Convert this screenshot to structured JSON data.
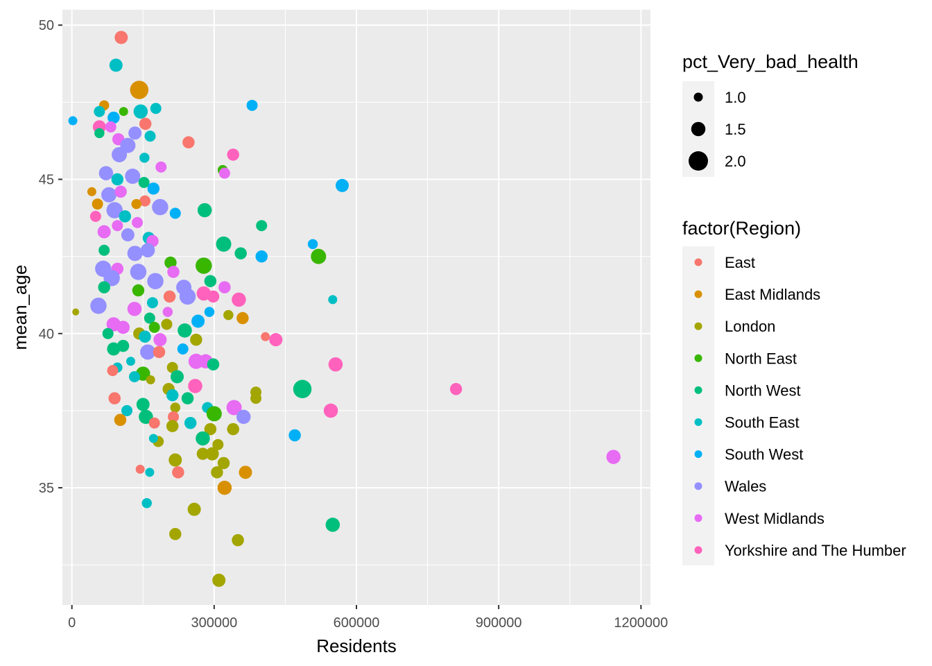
{
  "chart_data": {
    "type": "scatter",
    "xlabel": "Residents",
    "ylabel": "mean_age",
    "xlim": [
      -20000,
      1220000
    ],
    "ylim": [
      31.2,
      50.5
    ],
    "x_ticks": [
      0,
      300000,
      600000,
      900000,
      1200000
    ],
    "x_tick_labels": [
      "0",
      "300000",
      "600000",
      "900000",
      "1200000"
    ],
    "y_ticks": [
      35,
      40,
      45,
      50
    ],
    "y_tick_labels": [
      "35",
      "40",
      "45",
      "50"
    ],
    "grid": true,
    "size_legend": {
      "title": "pct_Very_bad_health",
      "entries": [
        {
          "label": "1.0",
          "value": 1.0
        },
        {
          "label": "1.5",
          "value": 1.5
        },
        {
          "label": "2.0",
          "value": 2.0
        }
      ]
    },
    "color_legend": {
      "title": "factor(Region)",
      "placement": "right",
      "entries": [
        {
          "label": "East",
          "color": "#F8766D"
        },
        {
          "label": "East Midlands",
          "color": "#D89000"
        },
        {
          "label": "London",
          "color": "#A3A500"
        },
        {
          "label": "North East",
          "color": "#39B600"
        },
        {
          "label": "North West",
          "color": "#00BF7D"
        },
        {
          "label": "South East",
          "color": "#00BFC4"
        },
        {
          "label": "South West",
          "color": "#00B0F6"
        },
        {
          "label": "Wales",
          "color": "#9590FF"
        },
        {
          "label": "West Midlands",
          "color": "#E76BF3"
        },
        {
          "label": "Yorkshire and The Humber",
          "color": "#FF62BC"
        }
      ]
    },
    "points": [
      {
        "x": 104000,
        "y": 49.6,
        "size": 1.4,
        "region": "East"
      },
      {
        "x": 93000,
        "y": 48.7,
        "size": 1.4,
        "region": "South East"
      },
      {
        "x": 142000,
        "y": 47.9,
        "size": 1.9,
        "region": "East Midlands"
      },
      {
        "x": 68000,
        "y": 47.4,
        "size": 1.1,
        "region": "East Midlands"
      },
      {
        "x": 58000,
        "y": 47.2,
        "size": 1.2,
        "region": "South East"
      },
      {
        "x": 145000,
        "y": 47.2,
        "size": 1.5,
        "region": "South East"
      },
      {
        "x": 177000,
        "y": 47.3,
        "size": 1.2,
        "region": "South East"
      },
      {
        "x": 109000,
        "y": 47.2,
        "size": 1.0,
        "region": "North East"
      },
      {
        "x": 380000,
        "y": 47.4,
        "size": 1.2,
        "region": "South West"
      },
      {
        "x": 2000,
        "y": 46.9,
        "size": 1.0,
        "region": "South West"
      },
      {
        "x": 88000,
        "y": 47.0,
        "size": 1.3,
        "region": "South West"
      },
      {
        "x": 155000,
        "y": 46.8,
        "size": 1.3,
        "region": "East"
      },
      {
        "x": 58000,
        "y": 46.7,
        "size": 1.4,
        "region": "Yorkshire and The Humber"
      },
      {
        "x": 82000,
        "y": 46.7,
        "size": 1.2,
        "region": "West Midlands"
      },
      {
        "x": 58000,
        "y": 46.5,
        "size": 1.1,
        "region": "North West"
      },
      {
        "x": 133000,
        "y": 46.5,
        "size": 1.4,
        "region": "Wales"
      },
      {
        "x": 165000,
        "y": 46.4,
        "size": 1.2,
        "region": "South East"
      },
      {
        "x": 98000,
        "y": 46.3,
        "size": 1.3,
        "region": "West Midlands"
      },
      {
        "x": 246000,
        "y": 46.2,
        "size": 1.3,
        "region": "East"
      },
      {
        "x": 118000,
        "y": 46.1,
        "size": 1.6,
        "region": "Wales"
      },
      {
        "x": 100000,
        "y": 45.8,
        "size": 1.6,
        "region": "Wales"
      },
      {
        "x": 153000,
        "y": 45.7,
        "size": 1.1,
        "region": "South East"
      },
      {
        "x": 340000,
        "y": 45.8,
        "size": 1.3,
        "region": "Yorkshire and The Humber"
      },
      {
        "x": 188000,
        "y": 45.4,
        "size": 1.2,
        "region": "West Midlands"
      },
      {
        "x": 318000,
        "y": 45.3,
        "size": 1.1,
        "region": "North East"
      },
      {
        "x": 322000,
        "y": 45.2,
        "size": 1.2,
        "region": "West Midlands"
      },
      {
        "x": 72000,
        "y": 45.2,
        "size": 1.5,
        "region": "Wales"
      },
      {
        "x": 128000,
        "y": 45.1,
        "size": 1.6,
        "region": "Wales"
      },
      {
        "x": 96000,
        "y": 45.0,
        "size": 1.3,
        "region": "South East"
      },
      {
        "x": 152000,
        "y": 44.9,
        "size": 1.2,
        "region": "North West"
      },
      {
        "x": 172000,
        "y": 44.7,
        "size": 1.3,
        "region": "South West"
      },
      {
        "x": 570000,
        "y": 44.8,
        "size": 1.4,
        "region": "South West"
      },
      {
        "x": 42000,
        "y": 44.6,
        "size": 1.0,
        "region": "East Midlands"
      },
      {
        "x": 78000,
        "y": 44.5,
        "size": 1.6,
        "region": "Wales"
      },
      {
        "x": 103000,
        "y": 44.6,
        "size": 1.3,
        "region": "West Midlands"
      },
      {
        "x": 154000,
        "y": 44.3,
        "size": 1.2,
        "region": "East"
      },
      {
        "x": 136000,
        "y": 44.2,
        "size": 1.1,
        "region": "East Midlands"
      },
      {
        "x": 54000,
        "y": 44.2,
        "size": 1.2,
        "region": "East Midlands"
      },
      {
        "x": 90000,
        "y": 44.0,
        "size": 1.7,
        "region": "Wales"
      },
      {
        "x": 186000,
        "y": 44.1,
        "size": 1.7,
        "region": "Wales"
      },
      {
        "x": 218000,
        "y": 43.9,
        "size": 1.2,
        "region": "South West"
      },
      {
        "x": 280000,
        "y": 44.0,
        "size": 1.5,
        "region": "North West"
      },
      {
        "x": 112000,
        "y": 43.8,
        "size": 1.3,
        "region": "South East"
      },
      {
        "x": 50000,
        "y": 43.8,
        "size": 1.2,
        "region": "Yorkshire and The Humber"
      },
      {
        "x": 138000,
        "y": 43.6,
        "size": 1.2,
        "region": "West Midlands"
      },
      {
        "x": 96000,
        "y": 43.5,
        "size": 1.2,
        "region": "West Midlands"
      },
      {
        "x": 400000,
        "y": 43.5,
        "size": 1.2,
        "region": "North West"
      },
      {
        "x": 68000,
        "y": 43.3,
        "size": 1.4,
        "region": "West Midlands"
      },
      {
        "x": 118000,
        "y": 43.2,
        "size": 1.4,
        "region": "Wales"
      },
      {
        "x": 162000,
        "y": 43.1,
        "size": 1.3,
        "region": "South East"
      },
      {
        "x": 170000,
        "y": 43.0,
        "size": 1.3,
        "region": "West Midlands"
      },
      {
        "x": 508000,
        "y": 42.9,
        "size": 1.1,
        "region": "South West"
      },
      {
        "x": 320000,
        "y": 42.9,
        "size": 1.6,
        "region": "North West"
      },
      {
        "x": 68000,
        "y": 42.7,
        "size": 1.2,
        "region": "North West"
      },
      {
        "x": 133000,
        "y": 42.6,
        "size": 1.6,
        "region": "Wales"
      },
      {
        "x": 160000,
        "y": 42.7,
        "size": 1.5,
        "region": "Wales"
      },
      {
        "x": 356000,
        "y": 42.6,
        "size": 1.3,
        "region": "North West"
      },
      {
        "x": 400000,
        "y": 42.5,
        "size": 1.3,
        "region": "South West"
      },
      {
        "x": 520000,
        "y": 42.5,
        "size": 1.6,
        "region": "North East"
      },
      {
        "x": 208000,
        "y": 42.3,
        "size": 1.3,
        "region": "North East"
      },
      {
        "x": 278000,
        "y": 42.2,
        "size": 1.7,
        "region": "North East"
      },
      {
        "x": 66000,
        "y": 42.1,
        "size": 1.7,
        "region": "Wales"
      },
      {
        "x": 96000,
        "y": 42.1,
        "size": 1.3,
        "region": "West Midlands"
      },
      {
        "x": 140000,
        "y": 42.0,
        "size": 1.7,
        "region": "Wales"
      },
      {
        "x": 214000,
        "y": 42.0,
        "size": 1.3,
        "region": "West Midlands"
      },
      {
        "x": 84000,
        "y": 41.8,
        "size": 1.7,
        "region": "Wales"
      },
      {
        "x": 176000,
        "y": 41.7,
        "size": 1.7,
        "region": "Wales"
      },
      {
        "x": 292000,
        "y": 41.7,
        "size": 1.3,
        "region": "North West"
      },
      {
        "x": 68000,
        "y": 41.5,
        "size": 1.3,
        "region": "North West"
      },
      {
        "x": 236000,
        "y": 41.5,
        "size": 1.6,
        "region": "Wales"
      },
      {
        "x": 322000,
        "y": 41.5,
        "size": 1.3,
        "region": "West Midlands"
      },
      {
        "x": 140000,
        "y": 41.4,
        "size": 1.3,
        "region": "North East"
      },
      {
        "x": 206000,
        "y": 41.2,
        "size": 1.3,
        "region": "East"
      },
      {
        "x": 244000,
        "y": 41.2,
        "size": 1.7,
        "region": "Wales"
      },
      {
        "x": 278000,
        "y": 41.3,
        "size": 1.5,
        "region": "Yorkshire and The Humber"
      },
      {
        "x": 298000,
        "y": 41.2,
        "size": 1.3,
        "region": "Yorkshire and The Humber"
      },
      {
        "x": 352000,
        "y": 41.1,
        "size": 1.5,
        "region": "Yorkshire and The Humber"
      },
      {
        "x": 550000,
        "y": 41.1,
        "size": 1.0,
        "region": "South East"
      },
      {
        "x": 170000,
        "y": 41.0,
        "size": 1.2,
        "region": "South East"
      },
      {
        "x": 56000,
        "y": 40.9,
        "size": 1.7,
        "region": "Wales"
      },
      {
        "x": 132000,
        "y": 40.8,
        "size": 1.5,
        "region": "West Midlands"
      },
      {
        "x": 8000,
        "y": 40.7,
        "size": 0.8,
        "region": "London"
      },
      {
        "x": 202000,
        "y": 40.7,
        "size": 1.1,
        "region": "West Midlands"
      },
      {
        "x": 290000,
        "y": 40.7,
        "size": 1.1,
        "region": "South West"
      },
      {
        "x": 164000,
        "y": 40.5,
        "size": 1.2,
        "region": "North West"
      },
      {
        "x": 330000,
        "y": 40.6,
        "size": 1.1,
        "region": "London"
      },
      {
        "x": 360000,
        "y": 40.5,
        "size": 1.3,
        "region": "East Midlands"
      },
      {
        "x": 266000,
        "y": 40.4,
        "size": 1.4,
        "region": "South West"
      },
      {
        "x": 88000,
        "y": 40.3,
        "size": 1.5,
        "region": "West Midlands"
      },
      {
        "x": 108000,
        "y": 40.2,
        "size": 1.4,
        "region": "West Midlands"
      },
      {
        "x": 174000,
        "y": 40.2,
        "size": 1.2,
        "region": "North East"
      },
      {
        "x": 200000,
        "y": 40.3,
        "size": 1.2,
        "region": "London"
      },
      {
        "x": 238000,
        "y": 40.1,
        "size": 1.5,
        "region": "North West"
      },
      {
        "x": 76000,
        "y": 40.0,
        "size": 1.2,
        "region": "North West"
      },
      {
        "x": 142000,
        "y": 40.0,
        "size": 1.3,
        "region": "London"
      },
      {
        "x": 154000,
        "y": 39.9,
        "size": 1.3,
        "region": "South East"
      },
      {
        "x": 186000,
        "y": 39.8,
        "size": 1.4,
        "region": "West Midlands"
      },
      {
        "x": 262000,
        "y": 39.8,
        "size": 1.3,
        "region": "London"
      },
      {
        "x": 430000,
        "y": 39.8,
        "size": 1.4,
        "region": "Yorkshire and The Humber"
      },
      {
        "x": 408000,
        "y": 39.9,
        "size": 1.0,
        "region": "East"
      },
      {
        "x": 88000,
        "y": 39.5,
        "size": 1.4,
        "region": "North West"
      },
      {
        "x": 108000,
        "y": 39.6,
        "size": 1.3,
        "region": "North West"
      },
      {
        "x": 160000,
        "y": 39.4,
        "size": 1.6,
        "region": "Wales"
      },
      {
        "x": 184000,
        "y": 39.4,
        "size": 1.3,
        "region": "East"
      },
      {
        "x": 234000,
        "y": 39.5,
        "size": 1.2,
        "region": "South West"
      },
      {
        "x": 262000,
        "y": 39.1,
        "size": 1.6,
        "region": "West Midlands"
      },
      {
        "x": 282000,
        "y": 39.1,
        "size": 1.5,
        "region": "West Midlands"
      },
      {
        "x": 298000,
        "y": 39.0,
        "size": 1.3,
        "region": "North West"
      },
      {
        "x": 556000,
        "y": 39.0,
        "size": 1.5,
        "region": "Yorkshire and The Humber"
      },
      {
        "x": 124000,
        "y": 39.1,
        "size": 1.0,
        "region": "South East"
      },
      {
        "x": 96000,
        "y": 38.9,
        "size": 1.1,
        "region": "South East"
      },
      {
        "x": 86000,
        "y": 38.8,
        "size": 1.2,
        "region": "East"
      },
      {
        "x": 212000,
        "y": 38.9,
        "size": 1.2,
        "region": "London"
      },
      {
        "x": 150000,
        "y": 38.7,
        "size": 1.5,
        "region": "North East"
      },
      {
        "x": 132000,
        "y": 38.6,
        "size": 1.2,
        "region": "South East"
      },
      {
        "x": 222000,
        "y": 38.6,
        "size": 1.4,
        "region": "North West"
      },
      {
        "x": 166000,
        "y": 38.5,
        "size": 1.0,
        "region": "London"
      },
      {
        "x": 260000,
        "y": 38.3,
        "size": 1.5,
        "region": "Yorkshire and The Humber"
      },
      {
        "x": 204000,
        "y": 38.2,
        "size": 1.3,
        "region": "London"
      },
      {
        "x": 486000,
        "y": 38.2,
        "size": 1.9,
        "region": "North West"
      },
      {
        "x": 810000,
        "y": 38.2,
        "size": 1.3,
        "region": "Yorkshire and The Humber"
      },
      {
        "x": 388000,
        "y": 38.1,
        "size": 1.2,
        "region": "London"
      },
      {
        "x": 90000,
        "y": 37.9,
        "size": 1.3,
        "region": "East"
      },
      {
        "x": 212000,
        "y": 38.0,
        "size": 1.3,
        "region": "South East"
      },
      {
        "x": 244000,
        "y": 37.9,
        "size": 1.3,
        "region": "North West"
      },
      {
        "x": 388000,
        "y": 37.9,
        "size": 1.2,
        "region": "London"
      },
      {
        "x": 150000,
        "y": 37.7,
        "size": 1.4,
        "region": "North West"
      },
      {
        "x": 218000,
        "y": 37.6,
        "size": 1.1,
        "region": "London"
      },
      {
        "x": 286000,
        "y": 37.6,
        "size": 1.2,
        "region": "South East"
      },
      {
        "x": 342000,
        "y": 37.6,
        "size": 1.6,
        "region": "West Midlands"
      },
      {
        "x": 546000,
        "y": 37.5,
        "size": 1.5,
        "region": "Yorkshire and The Humber"
      },
      {
        "x": 116000,
        "y": 37.5,
        "size": 1.2,
        "region": "South East"
      },
      {
        "x": 300000,
        "y": 37.4,
        "size": 1.6,
        "region": "North East"
      },
      {
        "x": 362000,
        "y": 37.3,
        "size": 1.5,
        "region": "Wales"
      },
      {
        "x": 102000,
        "y": 37.2,
        "size": 1.3,
        "region": "East Midlands"
      },
      {
        "x": 156000,
        "y": 37.3,
        "size": 1.5,
        "region": "North West"
      },
      {
        "x": 214000,
        "y": 37.3,
        "size": 1.2,
        "region": "East"
      },
      {
        "x": 250000,
        "y": 37.1,
        "size": 1.3,
        "region": "South East"
      },
      {
        "x": 174000,
        "y": 37.1,
        "size": 1.2,
        "region": "East"
      },
      {
        "x": 212000,
        "y": 37.0,
        "size": 1.3,
        "region": "London"
      },
      {
        "x": 292000,
        "y": 36.9,
        "size": 1.3,
        "region": "London"
      },
      {
        "x": 340000,
        "y": 36.9,
        "size": 1.3,
        "region": "London"
      },
      {
        "x": 470000,
        "y": 36.7,
        "size": 1.3,
        "region": "South West"
      },
      {
        "x": 276000,
        "y": 36.6,
        "size": 1.5,
        "region": "North West"
      },
      {
        "x": 182000,
        "y": 36.5,
        "size": 1.2,
        "region": "London"
      },
      {
        "x": 172000,
        "y": 36.6,
        "size": 1.0,
        "region": "South East"
      },
      {
        "x": 308000,
        "y": 36.4,
        "size": 1.2,
        "region": "London"
      },
      {
        "x": 296000,
        "y": 36.1,
        "size": 1.4,
        "region": "London"
      },
      {
        "x": 276000,
        "y": 36.1,
        "size": 1.3,
        "region": "London"
      },
      {
        "x": 1142000,
        "y": 36.0,
        "size": 1.5,
        "region": "West Midlands"
      },
      {
        "x": 218000,
        "y": 35.9,
        "size": 1.4,
        "region": "London"
      },
      {
        "x": 320000,
        "y": 35.8,
        "size": 1.3,
        "region": "London"
      },
      {
        "x": 144000,
        "y": 35.6,
        "size": 1.0,
        "region": "East"
      },
      {
        "x": 164000,
        "y": 35.5,
        "size": 1.0,
        "region": "South East"
      },
      {
        "x": 224000,
        "y": 35.5,
        "size": 1.3,
        "region": "East"
      },
      {
        "x": 306000,
        "y": 35.5,
        "size": 1.3,
        "region": "London"
      },
      {
        "x": 366000,
        "y": 35.5,
        "size": 1.4,
        "region": "East Midlands"
      },
      {
        "x": 322000,
        "y": 35.0,
        "size": 1.5,
        "region": "East Midlands"
      },
      {
        "x": 158000,
        "y": 34.5,
        "size": 1.1,
        "region": "South East"
      },
      {
        "x": 258000,
        "y": 34.3,
        "size": 1.4,
        "region": "London"
      },
      {
        "x": 550000,
        "y": 33.8,
        "size": 1.5,
        "region": "North West"
      },
      {
        "x": 218000,
        "y": 33.5,
        "size": 1.3,
        "region": "London"
      },
      {
        "x": 350000,
        "y": 33.3,
        "size": 1.3,
        "region": "London"
      },
      {
        "x": 310000,
        "y": 32.0,
        "size": 1.4,
        "region": "London"
      }
    ]
  }
}
